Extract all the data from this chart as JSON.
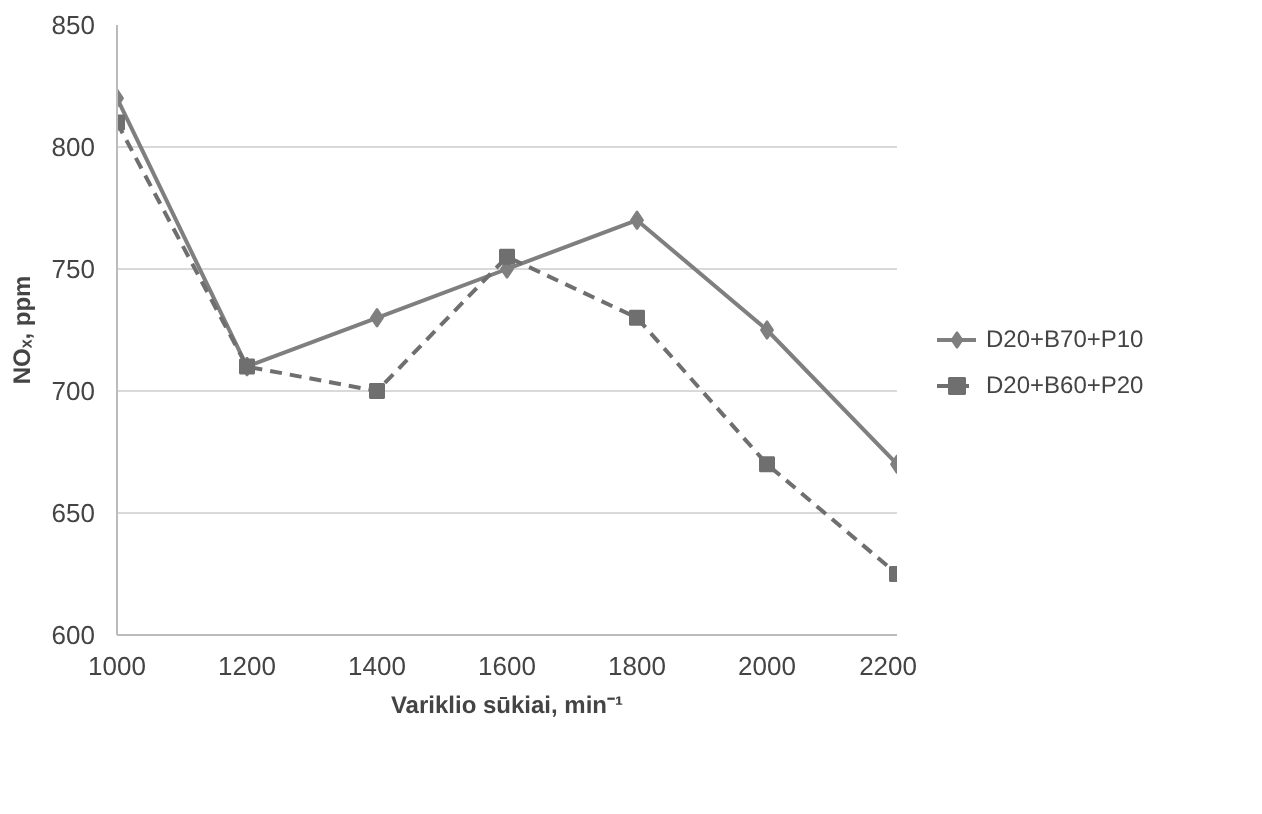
{
  "chart_data": {
    "type": "line",
    "xlabel": "Variklio sūkiai, min⁻¹",
    "ylabel": "NOₓ, ppm",
    "x": [
      1000,
      1200,
      1400,
      1600,
      1800,
      2000,
      2200
    ],
    "series": [
      {
        "name": "D20+B70+P10",
        "color": "#7f7f7f",
        "marker": "diamond",
        "line_style": "solid",
        "values": [
          820,
          710,
          730,
          750,
          770,
          725,
          670
        ]
      },
      {
        "name": "D20+B60+P20",
        "color": "#6f6f6f",
        "marker": "square",
        "line_style": "dashed",
        "values": [
          810,
          710,
          700,
          755,
          730,
          670,
          625
        ]
      }
    ],
    "xlim": [
      1000,
      2200
    ],
    "xticks": [
      1000,
      1200,
      1400,
      1600,
      1800,
      2000,
      2200
    ],
    "ylim": [
      600,
      850
    ],
    "yticks": [
      600,
      650,
      700,
      750,
      800,
      850
    ],
    "grid": "y",
    "legend": "right"
  }
}
